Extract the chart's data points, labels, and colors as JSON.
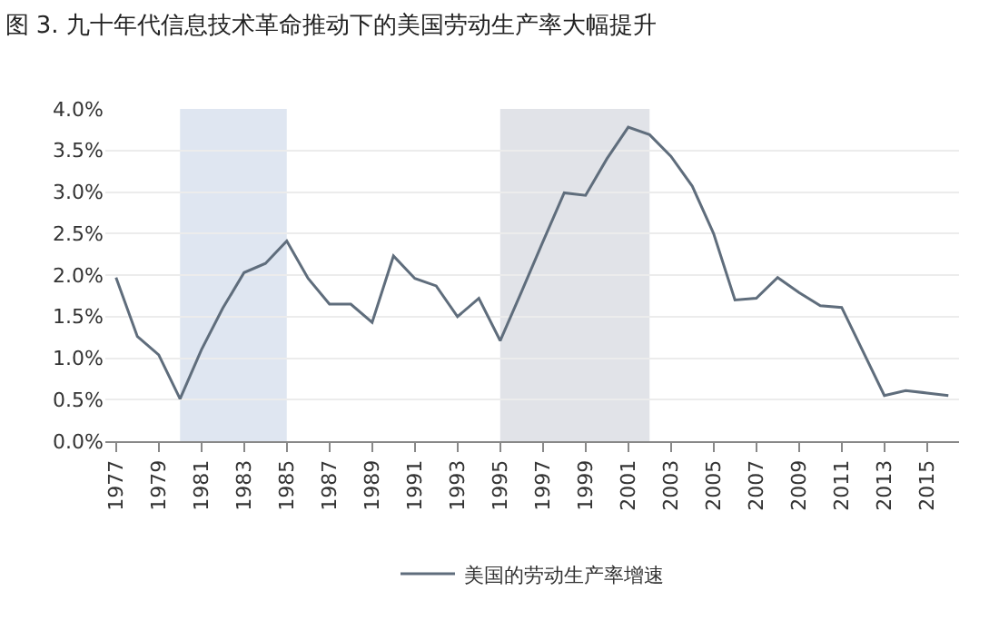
{
  "chart_data": {
    "type": "line",
    "title": "图 3. 九十年代信息技术革命推动下的美国劳动生产率大幅提升",
    "x": [
      1977,
      1978,
      1979,
      1980,
      1981,
      1982,
      1983,
      1984,
      1985,
      1986,
      1987,
      1988,
      1989,
      1990,
      1991,
      1992,
      1993,
      1994,
      1995,
      1996,
      1997,
      1998,
      1999,
      2000,
      2001,
      2002,
      2003,
      2004,
      2005,
      2006,
      2007,
      2008,
      2009,
      2010,
      2011,
      2012,
      2013,
      2014,
      2015,
      2016
    ],
    "series": [
      {
        "name": "美国的劳动生产率增速",
        "color": "#5f6d7c",
        "values": [
          1.97,
          1.26,
          1.04,
          0.51,
          1.1,
          1.6,
          2.03,
          2.14,
          2.41,
          1.96,
          1.65,
          1.65,
          1.43,
          2.23,
          1.96,
          1.87,
          1.5,
          1.72,
          1.21,
          1.8,
          2.4,
          2.99,
          2.96,
          3.4,
          3.78,
          3.69,
          3.43,
          3.07,
          2.5,
          1.7,
          1.72,
          1.97,
          1.79,
          1.63,
          1.61,
          1.08,
          0.55,
          0.61,
          0.58,
          0.55
        ]
      }
    ],
    "xlim": [
      1976.5,
      2016.5
    ],
    "xticks": [
      1977,
      1979,
      1981,
      1983,
      1985,
      1987,
      1989,
      1991,
      1993,
      1995,
      1997,
      1999,
      2001,
      2003,
      2005,
      2007,
      2009,
      2011,
      2013,
      2015
    ],
    "ylim": [
      0,
      4
    ],
    "yticks": [
      {
        "value": 0,
        "label": "0.0%"
      },
      {
        "value": 0.5,
        "label": "0.5%"
      },
      {
        "value": 1,
        "label": "1.0%"
      },
      {
        "value": 1.5,
        "label": "1.5%"
      },
      {
        "value": 2,
        "label": "2.0%"
      },
      {
        "value": 2.5,
        "label": "2.5%"
      },
      {
        "value": 3,
        "label": "3.0%"
      },
      {
        "value": 3.5,
        "label": "3.5%"
      },
      {
        "value": 4,
        "label": "4.0%"
      }
    ],
    "bands": [
      {
        "axis": "x",
        "from": 1980,
        "to": 1985,
        "color": "#dfe6f1"
      },
      {
        "axis": "x",
        "from": 1995,
        "to": 2002,
        "color": "#e1e3e8"
      }
    ],
    "grid": "y",
    "legend": "bottom",
    "marker": "none",
    "line_style": "solid"
  }
}
